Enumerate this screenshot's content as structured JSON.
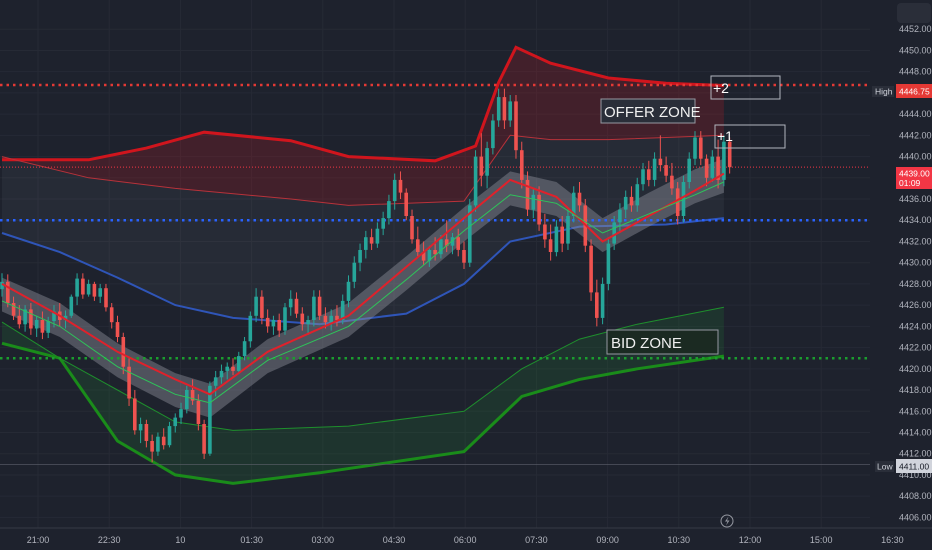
{
  "chart_data": {
    "type": "candlestick",
    "y_axis": {
      "min": 4405,
      "max": 4454,
      "ticks": [
        4406,
        4408,
        4410,
        4412,
        4414,
        4416,
        4418,
        4420,
        4422,
        4424,
        4426,
        4428,
        4430,
        4432,
        4434,
        4436,
        4438,
        4440,
        4442,
        4444,
        4446,
        4448,
        4450,
        4452
      ],
      "position": "right"
    },
    "x_axis": {
      "labels": [
        "21:00",
        "22:30",
        "10",
        "01:30",
        "03:00",
        "04:30",
        "06:00",
        "07:30",
        "09:00",
        "10:30",
        "12:00",
        "15:00",
        "16:30"
      ]
    },
    "price_tags": {
      "high": {
        "label": "High",
        "value": "4446.75",
        "color": "#e53935"
      },
      "current": {
        "value": "4439.00",
        "countdown": "01:09",
        "color": "#f23645"
      },
      "low": {
        "label": "Low",
        "value": "4411.00",
        "color": "#d1d4dc"
      }
    },
    "levels": [
      {
        "name": "high-line",
        "value": 4446.75,
        "color": "#e53935",
        "style": "dotted"
      },
      {
        "name": "current-line",
        "value": 4439.0,
        "color": "#f23645",
        "style": "dotted-thin"
      },
      {
        "name": "blue-line",
        "value": 4434.0,
        "color": "#2962ff",
        "style": "dotted"
      },
      {
        "name": "green-line",
        "value": 4421.0,
        "color": "#1b9e2e",
        "style": "dotted"
      },
      {
        "name": "low-line",
        "value": 4411.0,
        "color": "#787b86",
        "style": "solid-thin"
      }
    ],
    "annotations": [
      {
        "text": "OFFER ZONE",
        "type": "zone-label"
      },
      {
        "text": "BID ZONE",
        "type": "zone-label"
      },
      {
        "text": "+2",
        "type": "level-box"
      },
      {
        "text": "+1",
        "type": "level-box"
      }
    ],
    "candles": [
      [
        4427.5,
        4429.0,
        4426.8,
        4428.2
      ],
      [
        4428.2,
        4428.9,
        4425.8,
        4426.2
      ],
      [
        4426.2,
        4426.8,
        4424.6,
        4425.0
      ],
      [
        4425.0,
        4426.0,
        4423.8,
        4424.2
      ],
      [
        4424.2,
        4426.0,
        4423.5,
        4425.6
      ],
      [
        4425.6,
        4426.2,
        4423.2,
        4423.8
      ],
      [
        4423.8,
        4425.0,
        4423.0,
        4424.6
      ],
      [
        4424.6,
        4425.4,
        4422.8,
        4423.4
      ],
      [
        4423.4,
        4424.9,
        4422.9,
        4424.5
      ],
      [
        4424.5,
        4426.0,
        4423.9,
        4425.4
      ],
      [
        4425.4,
        4426.2,
        4424.0,
        4424.6
      ],
      [
        4424.6,
        4425.5,
        4423.8,
        4425.0
      ],
      [
        4425.0,
        4427.0,
        4424.8,
        4426.8
      ],
      [
        4426.8,
        4429.0,
        4426.0,
        4428.5
      ],
      [
        4428.5,
        4429.0,
        4426.6,
        4427.0
      ],
      [
        4427.0,
        4428.4,
        4426.8,
        4428.0
      ],
      [
        4428.0,
        4428.2,
        4426.4,
        4426.8
      ],
      [
        4426.8,
        4428.0,
        4426.2,
        4427.6
      ],
      [
        4427.6,
        4428.0,
        4425.4,
        4425.8
      ],
      [
        4425.8,
        4426.2,
        4423.8,
        4424.4
      ],
      [
        4424.4,
        4425.0,
        4422.5,
        4423.0
      ],
      [
        4423.0,
        4423.4,
        4419.5,
        4420.2
      ],
      [
        4420.2,
        4421.0,
        4416.5,
        4417.2
      ],
      [
        4417.2,
        4418.0,
        4413.8,
        4414.2
      ],
      [
        4414.2,
        4415.4,
        4413.0,
        4414.8
      ],
      [
        4414.8,
        4415.2,
        4412.6,
        4413.2
      ],
      [
        4413.2,
        4413.8,
        4411.2,
        4412.2
      ],
      [
        4412.2,
        4414.0,
        4411.8,
        4413.6
      ],
      [
        4413.6,
        4414.4,
        4412.4,
        4412.8
      ],
      [
        4412.8,
        4415.0,
        4412.6,
        4414.6
      ],
      [
        4414.6,
        4415.8,
        4414.0,
        4415.4
      ],
      [
        4415.4,
        4416.8,
        4414.8,
        4416.2
      ],
      [
        4416.2,
        4418.4,
        4415.8,
        4418.0
      ],
      [
        4418.0,
        4419.0,
        4416.6,
        4417.0
      ],
      [
        4417.0,
        4417.6,
        4414.2,
        4414.8
      ],
      [
        4414.8,
        4415.2,
        4411.5,
        4412.0
      ],
      [
        4412.0,
        4418.8,
        4411.8,
        4418.4
      ],
      [
        4418.4,
        4419.8,
        4417.4,
        4419.2
      ],
      [
        4419.2,
        4420.4,
        4418.6,
        4419.8
      ],
      [
        4419.8,
        4420.6,
        4419.0,
        4420.2
      ],
      [
        4420.2,
        4421.0,
        4419.4,
        4419.8
      ],
      [
        4419.8,
        4421.6,
        4419.5,
        4421.2
      ],
      [
        4421.2,
        4423.0,
        4420.8,
        4422.6
      ],
      [
        4422.6,
        4425.4,
        4422.0,
        4425.0
      ],
      [
        4425.0,
        4427.6,
        4424.4,
        4426.8
      ],
      [
        4426.8,
        4427.4,
        4424.2,
        4424.8
      ],
      [
        4424.8,
        4425.6,
        4423.4,
        4424.0
      ],
      [
        4424.0,
        4425.0,
        4423.2,
        4424.6
      ],
      [
        4424.6,
        4425.2,
        4423.0,
        4423.6
      ],
      [
        4423.6,
        4426.2,
        4423.2,
        4425.8
      ],
      [
        4425.8,
        4427.4,
        4425.0,
        4426.6
      ],
      [
        4426.6,
        4427.2,
        4424.8,
        4425.2
      ],
      [
        4425.2,
        4425.8,
        4423.6,
        4424.2
      ],
      [
        4424.2,
        4425.0,
        4423.2,
        4424.6
      ],
      [
        4424.6,
        4427.4,
        4424.0,
        4426.8
      ],
      [
        4426.8,
        4427.4,
        4424.6,
        4425.0
      ],
      [
        4425.0,
        4425.8,
        4423.8,
        4424.4
      ],
      [
        4424.4,
        4425.6,
        4423.6,
        4425.0
      ],
      [
        4425.0,
        4426.0,
        4424.0,
        4424.6
      ],
      [
        4424.6,
        4427.0,
        4424.2,
        4426.4
      ],
      [
        4426.4,
        4428.8,
        4425.8,
        4428.2
      ],
      [
        4428.2,
        4430.6,
        4427.6,
        4430.0
      ],
      [
        4430.0,
        4431.8,
        4429.2,
        4431.2
      ],
      [
        4431.2,
        4433.0,
        4430.4,
        4432.4
      ],
      [
        4432.4,
        4433.2,
        4431.2,
        4431.8
      ],
      [
        4431.8,
        4433.8,
        4431.4,
        4433.2
      ],
      [
        4433.2,
        4434.8,
        4432.6,
        4434.2
      ],
      [
        4434.2,
        4436.4,
        4433.6,
        4435.8
      ],
      [
        4435.8,
        4438.4,
        4435.0,
        4437.8
      ],
      [
        4437.8,
        4438.6,
        4436.0,
        4436.6
      ],
      [
        4436.6,
        4437.0,
        4434.0,
        4434.4
      ],
      [
        4434.4,
        4435.0,
        4431.8,
        4432.2
      ],
      [
        4432.2,
        4433.4,
        4430.6,
        4431.0
      ],
      [
        4431.0,
        4432.0,
        4429.8,
        4430.2
      ],
      [
        4430.2,
        4431.6,
        4429.6,
        4431.2
      ],
      [
        4431.2,
        4432.4,
        4430.2,
        4430.8
      ],
      [
        4430.8,
        4432.6,
        4430.4,
        4432.2
      ],
      [
        4432.2,
        4434.0,
        4431.0,
        4431.6
      ],
      [
        4431.6,
        4432.8,
        4430.8,
        4432.4
      ],
      [
        4432.4,
        4433.2,
        4430.6,
        4431.2
      ],
      [
        4431.2,
        4432.0,
        4429.4,
        4430.0
      ],
      [
        4430.0,
        4436.0,
        4429.6,
        4435.4
      ],
      [
        4435.4,
        4440.6,
        4434.8,
        4440.0
      ],
      [
        4440.0,
        4442.2,
        4437.2,
        4438.2
      ],
      [
        4438.2,
        4441.4,
        4437.0,
        4440.8
      ],
      [
        4440.8,
        4444.0,
        4440.2,
        4443.4
      ],
      [
        4443.4,
        4446.4,
        4442.8,
        4445.6
      ],
      [
        4445.6,
        4446.4,
        4442.6,
        4443.4
      ],
      [
        4443.4,
        4445.8,
        4442.8,
        4445.2
      ],
      [
        4445.2,
        4445.8,
        4439.8,
        4440.6
      ],
      [
        4440.6,
        4441.4,
        4437.0,
        4437.8
      ],
      [
        4437.8,
        4438.6,
        4434.4,
        4435.0
      ],
      [
        4435.0,
        4437.0,
        4434.2,
        4436.4
      ],
      [
        4436.4,
        4437.2,
        4433.0,
        4433.6
      ],
      [
        4433.6,
        4434.6,
        4431.4,
        4432.2
      ],
      [
        4432.2,
        4433.6,
        4430.2,
        4431.0
      ],
      [
        4431.0,
        4434.0,
        4430.6,
        4433.4
      ],
      [
        4433.4,
        4434.4,
        4431.0,
        4431.8
      ],
      [
        4431.8,
        4435.0,
        4431.2,
        4434.4
      ],
      [
        4434.4,
        4437.2,
        4433.8,
        4436.6
      ],
      [
        4436.6,
        4437.6,
        4434.8,
        4435.4
      ],
      [
        4435.4,
        4436.0,
        4431.0,
        4431.6
      ],
      [
        4431.6,
        4432.2,
        4426.4,
        4427.2
      ],
      [
        4427.2,
        4428.4,
        4424.0,
        4424.8
      ],
      [
        4424.8,
        4428.6,
        4424.2,
        4428.0
      ],
      [
        4428.0,
        4432.4,
        4427.4,
        4431.8
      ],
      [
        4431.8,
        4434.4,
        4431.2,
        4433.8
      ],
      [
        4433.8,
        4435.6,
        4432.8,
        4435.0
      ],
      [
        4435.0,
        4436.8,
        4434.2,
        4436.2
      ],
      [
        4436.2,
        4437.2,
        4434.8,
        4435.4
      ],
      [
        4435.4,
        4438.0,
        4434.8,
        4437.4
      ],
      [
        4437.4,
        4439.4,
        4436.8,
        4438.8
      ],
      [
        4438.8,
        4439.6,
        4437.2,
        4437.8
      ],
      [
        4437.8,
        4440.4,
        4437.2,
        4439.8
      ],
      [
        4439.8,
        4442.0,
        4438.6,
        4439.2
      ],
      [
        4439.2,
        4440.0,
        4437.6,
        4438.2
      ],
      [
        4438.2,
        4439.4,
        4436.4,
        4437.0
      ],
      [
        4437.0,
        4437.6,
        4433.6,
        4434.4
      ],
      [
        4434.4,
        4438.2,
        4433.8,
        4437.6
      ],
      [
        4437.6,
        4440.4,
        4437.0,
        4439.8
      ],
      [
        4439.8,
        4442.4,
        4439.2,
        4441.8
      ],
      [
        4441.8,
        4442.4,
        4439.2,
        4439.8
      ],
      [
        4439.8,
        4440.2,
        4437.2,
        4438.0
      ],
      [
        4438.0,
        4440.6,
        4437.6,
        4440.0
      ],
      [
        4440.0,
        4441.6,
        4437.0,
        4437.8
      ],
      [
        4437.8,
        4442.0,
        4437.2,
        4441.4
      ],
      [
        4441.4,
        4441.8,
        4438.4,
        4439.0
      ]
    ],
    "bands": {
      "offer_outer_r": [
        [
          0,
          4439.7
        ],
        [
          15,
          4439.7
        ],
        [
          25,
          4440.8
        ],
        [
          35,
          4442.3
        ],
        [
          50,
          4441.5
        ],
        [
          60,
          4440.0
        ],
        [
          75,
          4439.6
        ],
        [
          82,
          4441.0
        ],
        [
          86,
          4447.0
        ],
        [
          89,
          4450.3
        ],
        [
          95,
          4448.8
        ],
        [
          105,
          4447.4
        ],
        [
          115,
          4446.9
        ],
        [
          125,
          4446.7
        ]
      ],
      "offer_inner_r": [
        [
          0,
          4440.0
        ],
        [
          15,
          4438.0
        ],
        [
          30,
          4437.0
        ],
        [
          50,
          4436.0
        ],
        [
          60,
          4435.4
        ],
        [
          80,
          4435.8
        ],
        [
          88,
          4442.0
        ],
        [
          95,
          4441.6
        ],
        [
          105,
          4441.6
        ],
        [
          115,
          4441.8
        ],
        [
          125,
          4442.0
        ]
      ],
      "bid_inner_g": [
        [
          0,
          4424.4
        ],
        [
          10,
          4421.0
        ],
        [
          20,
          4418.0
        ],
        [
          30,
          4415.0
        ],
        [
          40,
          4414.2
        ],
        [
          60,
          4414.6
        ],
        [
          80,
          4416.0
        ],
        [
          90,
          4420.0
        ],
        [
          100,
          4422.8
        ],
        [
          110,
          4424.2
        ],
        [
          125,
          4425.8
        ]
      ],
      "bid_outer_g": [
        [
          0,
          4422.4
        ],
        [
          10,
          4421.0
        ],
        [
          20,
          4413.2
        ],
        [
          30,
          4410.0
        ],
        [
          40,
          4409.2
        ],
        [
          55,
          4410.2
        ],
        [
          80,
          4412.2
        ],
        [
          90,
          4417.4
        ],
        [
          100,
          4419.0
        ],
        [
          110,
          4420.0
        ],
        [
          125,
          4421.2
        ]
      ],
      "blue_line": [
        [
          0,
          4432.8
        ],
        [
          10,
          4431.0
        ],
        [
          20,
          4428.6
        ],
        [
          30,
          4426.0
        ],
        [
          40,
          4424.8
        ],
        [
          55,
          4424.2
        ],
        [
          70,
          4425.2
        ],
        [
          80,
          4428.0
        ],
        [
          88,
          4432.0
        ],
        [
          100,
          4433.4
        ],
        [
          115,
          4433.6
        ],
        [
          125,
          4434.2
        ]
      ],
      "mid_red": [
        [
          0,
          4428.0
        ],
        [
          10,
          4425.0
        ],
        [
          20,
          4421.6
        ],
        [
          30,
          4419.0
        ],
        [
          36,
          4417.6
        ],
        [
          46,
          4421.6
        ],
        [
          60,
          4425.0
        ],
        [
          70,
          4429.6
        ],
        [
          80,
          4434.2
        ],
        [
          88,
          4437.8
        ],
        [
          96,
          4436.2
        ],
        [
          104,
          4432.0
        ],
        [
          112,
          4434.4
        ],
        [
          120,
          4436.8
        ],
        [
          125,
          4438.4
        ]
      ],
      "ma_white": [
        [
          0,
          4427.0
        ],
        [
          10,
          4424.6
        ],
        [
          20,
          4420.8
        ],
        [
          30,
          4418.0
        ],
        [
          36,
          4417.0
        ],
        [
          46,
          4421.2
        ],
        [
          60,
          4424.6
        ],
        [
          70,
          4429.0
        ],
        [
          80,
          4433.6
        ],
        [
          88,
          4437.0
        ],
        [
          96,
          4436.0
        ],
        [
          104,
          4432.6
        ],
        [
          112,
          4435.0
        ],
        [
          120,
          4437.2
        ],
        [
          125,
          4438.2
        ]
      ],
      "ma_green": [
        [
          0,
          4426.4
        ],
        [
          10,
          4424.0
        ],
        [
          20,
          4420.2
        ],
        [
          30,
          4417.6
        ],
        [
          36,
          4416.8
        ],
        [
          46,
          4420.8
        ],
        [
          60,
          4424.0
        ],
        [
          70,
          4428.4
        ],
        [
          80,
          4433.0
        ],
        [
          88,
          4436.4
        ],
        [
          96,
          4435.6
        ],
        [
          104,
          4432.8
        ],
        [
          112,
          4434.6
        ],
        [
          120,
          4436.4
        ],
        [
          125,
          4437.6
        ]
      ]
    }
  }
}
